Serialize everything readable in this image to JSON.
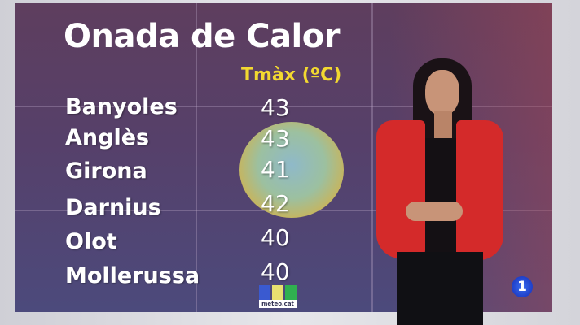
{
  "graphic": {
    "title": "Onada de Calor",
    "column_header": "Tmàx (ºC)",
    "rows": [
      {
        "city": "Banyoles",
        "tmax": "43"
      },
      {
        "city": "Anglès",
        "tmax": "43"
      },
      {
        "city": "Girona",
        "tmax": "41"
      },
      {
        "city": "Darnius",
        "tmax": "42"
      },
      {
        "city": "Olot",
        "tmax": "40"
      },
      {
        "city": "Mollerussa",
        "tmax": "40"
      }
    ]
  },
  "logos": {
    "meteo": "meteo.cat",
    "channel": "1"
  },
  "colors": {
    "title": "#ffffff",
    "header": "#f2d830",
    "jacket": "#d42a2a"
  }
}
